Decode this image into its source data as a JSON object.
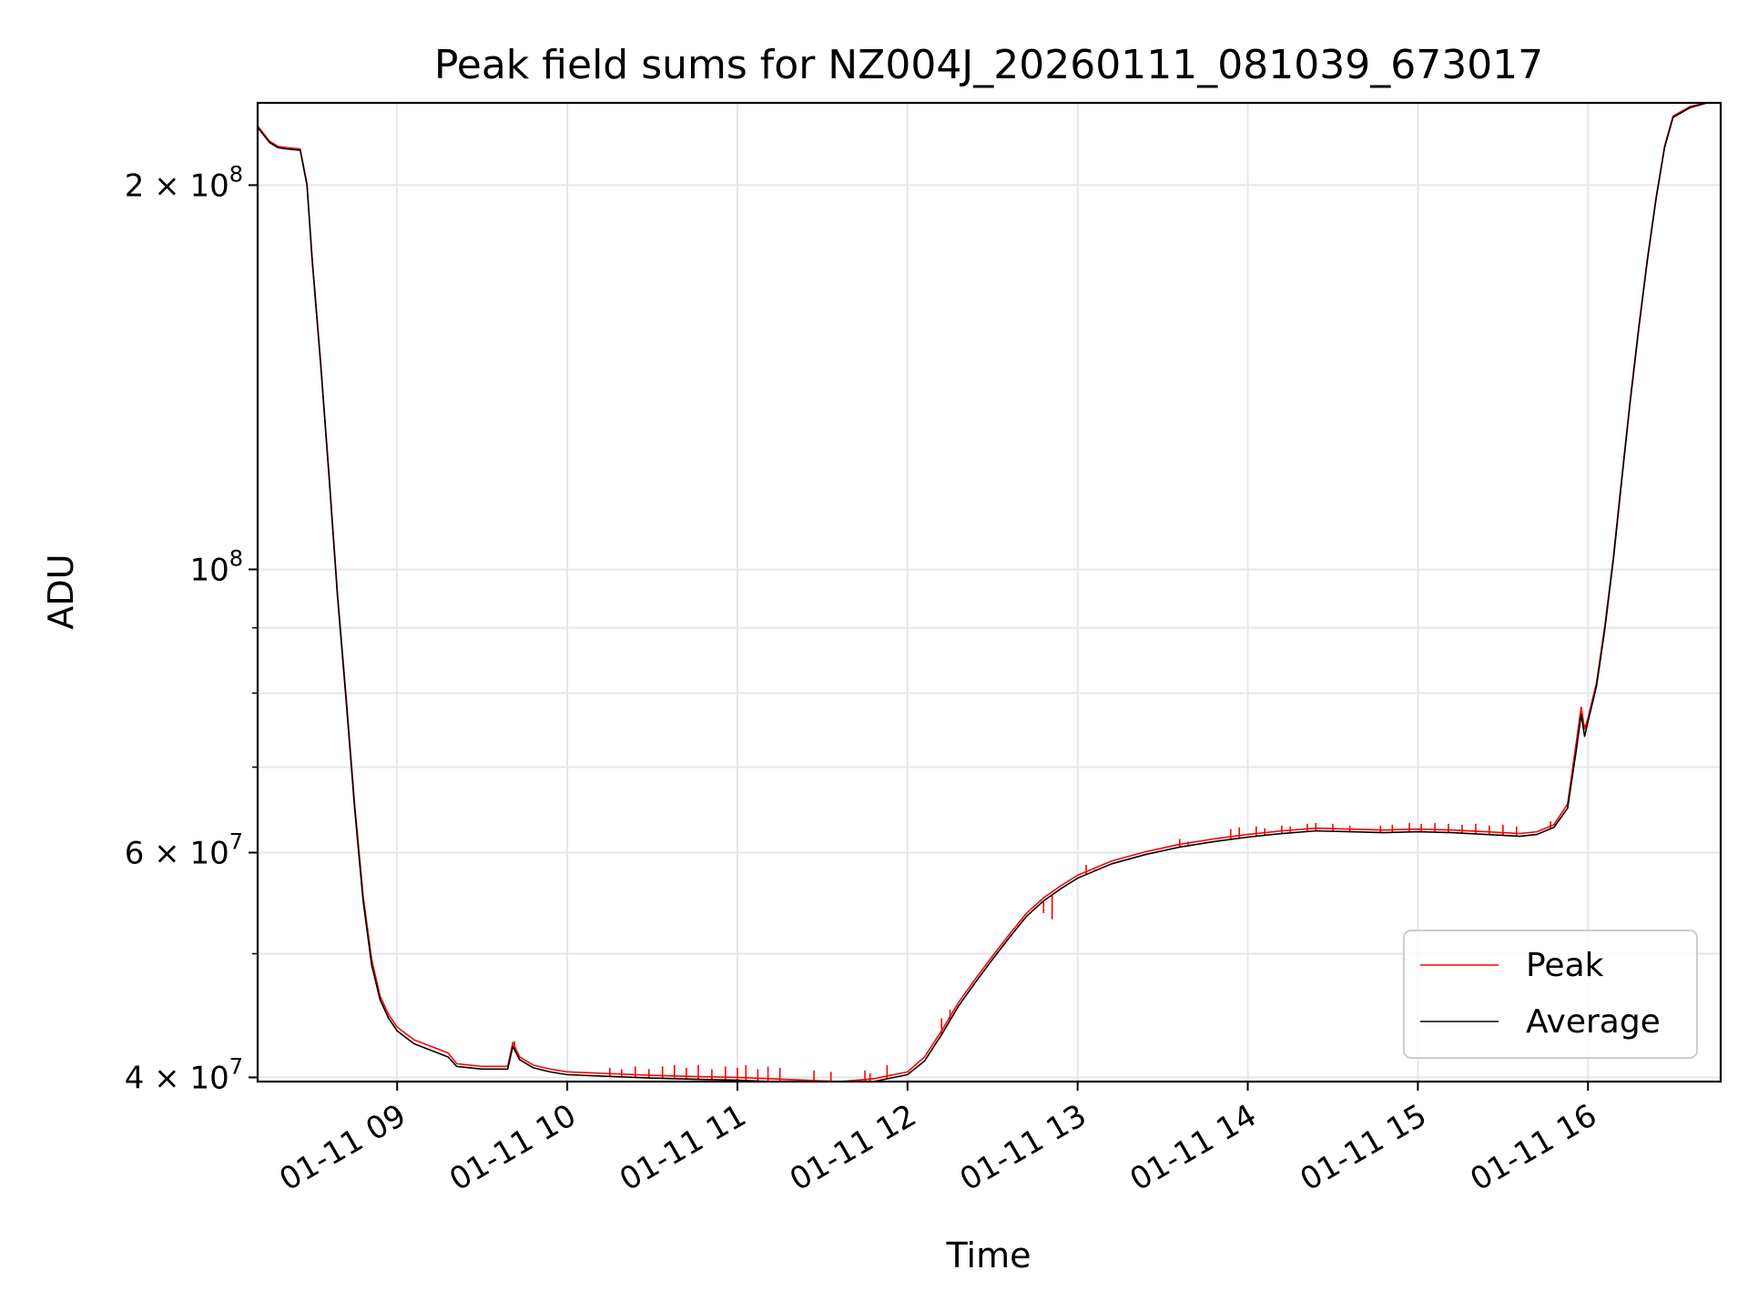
{
  "chart_data": {
    "type": "line",
    "title": "Peak field sums for NZ004J_20260111_081039_673017",
    "xlabel": "Time",
    "ylabel": "ADU",
    "yscale": "log",
    "xlim": [
      8.18,
      16.78
    ],
    "ylim": [
      39700000,
      232000000
    ],
    "grid": true,
    "legend_position": "lower right",
    "x_ticks": [
      {
        "value": 9,
        "label": "01-11 09"
      },
      {
        "value": 10,
        "label": "01-11 10"
      },
      {
        "value": 11,
        "label": "01-11 11"
      },
      {
        "value": 12,
        "label": "01-11 12"
      },
      {
        "value": 13,
        "label": "01-11 13"
      },
      {
        "value": 14,
        "label": "01-11 14"
      },
      {
        "value": 15,
        "label": "01-11 15"
      },
      {
        "value": 16,
        "label": "01-11 16"
      }
    ],
    "y_major_ticks": [
      {
        "value": 40000000,
        "mantissa": "4 × 10",
        "exp": "7"
      },
      {
        "value": 60000000,
        "mantissa": "6 × 10",
        "exp": "7"
      },
      {
        "value": 100000000,
        "mantissa": "10",
        "exp": "8"
      },
      {
        "value": 200000000,
        "mantissa": "2 × 10",
        "exp": "8"
      }
    ],
    "y_minor_ticks": [
      50000000,
      70000000,
      80000000,
      90000000
    ],
    "series": [
      {
        "name": "Average",
        "color": "#000000",
        "x": [
          8.18,
          8.25,
          8.3,
          8.35,
          8.43,
          8.47,
          8.5,
          8.55,
          8.6,
          8.65,
          8.7,
          8.75,
          8.8,
          8.85,
          8.9,
          8.95,
          9.0,
          9.1,
          9.2,
          9.3,
          9.35,
          9.5,
          9.65,
          9.68,
          9.72,
          9.8,
          9.9,
          10.0,
          10.2,
          10.5,
          10.8,
          11.0,
          11.2,
          11.4,
          11.6,
          11.8,
          12.0,
          12.1,
          12.2,
          12.3,
          12.4,
          12.5,
          12.6,
          12.7,
          12.8,
          12.9,
          13.0,
          13.2,
          13.4,
          13.6,
          13.8,
          14.0,
          14.2,
          14.4,
          14.6,
          14.8,
          15.0,
          15.2,
          15.4,
          15.6,
          15.7,
          15.8,
          15.88,
          15.93,
          15.96,
          15.98,
          16.0,
          16.05,
          16.1,
          16.15,
          16.2,
          16.25,
          16.3,
          16.35,
          16.4,
          16.45,
          16.5,
          16.6,
          16.7,
          16.78
        ],
        "y": [
          222000000,
          216000000,
          214000000,
          213500000,
          213000000,
          200000000,
          175000000,
          145000000,
          118000000,
          95000000,
          79000000,
          65000000,
          55000000,
          49000000,
          46000000,
          44500000,
          43500000,
          42500000,
          42000000,
          41500000,
          40800000,
          40600000,
          40600000,
          42300000,
          41300000,
          40700000,
          40400000,
          40200000,
          40100000,
          39950000,
          39850000,
          39800000,
          39700000,
          39600000,
          39500000,
          39700000,
          40200000,
          41200000,
          43200000,
          45500000,
          47500000,
          49500000,
          51500000,
          53500000,
          55000000,
          56200000,
          57300000,
          58800000,
          59800000,
          60600000,
          61200000,
          61700000,
          62100000,
          62400000,
          62300000,
          62200000,
          62300000,
          62200000,
          62000000,
          61800000,
          62000000,
          62800000,
          65000000,
          72000000,
          77000000,
          74000000,
          76000000,
          81000000,
          90000000,
          102000000,
          118000000,
          136000000,
          155000000,
          175000000,
          195000000,
          214000000,
          226000000,
          230000000,
          232000000,
          232000000
        ]
      },
      {
        "name": "Peak",
        "color": "#ff0000",
        "x": [
          8.18,
          8.25,
          8.3,
          8.35,
          8.43,
          8.47,
          8.5,
          8.55,
          8.6,
          8.65,
          8.7,
          8.75,
          8.8,
          8.85,
          8.9,
          8.95,
          9.0,
          9.1,
          9.2,
          9.3,
          9.35,
          9.5,
          9.65,
          9.68,
          9.72,
          9.8,
          9.9,
          10.0,
          10.2,
          10.5,
          10.8,
          11.0,
          11.2,
          11.4,
          11.6,
          11.8,
          12.0,
          12.1,
          12.2,
          12.3,
          12.4,
          12.5,
          12.6,
          12.7,
          12.8,
          12.9,
          13.0,
          13.2,
          13.4,
          13.6,
          13.8,
          14.0,
          14.2,
          14.4,
          14.6,
          14.8,
          15.0,
          15.2,
          15.4,
          15.6,
          15.7,
          15.8,
          15.88,
          15.93,
          15.96,
          15.98,
          16.0,
          16.05,
          16.1,
          16.15,
          16.2,
          16.25,
          16.3,
          16.35,
          16.4,
          16.45,
          16.5,
          16.6,
          16.7,
          16.78
        ],
        "y": [
          222500000,
          216500000,
          214500000,
          214000000,
          213500000,
          200500000,
          175500000,
          145500000,
          118500000,
          95500000,
          79500000,
          65500000,
          55500000,
          49500000,
          46300000,
          44800000,
          43800000,
          42800000,
          42300000,
          41800000,
          41000000,
          40800000,
          40800000,
          42600000,
          41500000,
          40900000,
          40600000,
          40400000,
          40300000,
          40150000,
          40050000,
          40000000,
          39900000,
          39800000,
          39700000,
          39900000,
          40400000,
          41500000,
          43500000,
          45800000,
          47800000,
          49800000,
          51800000,
          53800000,
          55300000,
          56500000,
          57600000,
          59100000,
          60100000,
          60900000,
          61500000,
          62000000,
          62400000,
          62700000,
          62600000,
          62500000,
          62600000,
          62500000,
          62300000,
          62100000,
          62300000,
          63100000,
          65500000,
          73000000,
          78000000,
          75000000,
          76500000,
          81500000,
          90500000,
          102500000,
          118500000,
          136500000,
          155500000,
          175500000,
          195500000,
          214500000,
          226500000,
          230500000,
          232000000,
          232000000
        ]
      }
    ],
    "peak_spikes": {
      "color": "#ff0000",
      "x": [
        9.69,
        10.25,
        10.32,
        10.4,
        10.48,
        10.56,
        10.63,
        10.7,
        10.77,
        10.85,
        10.93,
        11.0,
        11.05,
        11.12,
        11.18,
        11.25,
        11.45,
        11.55,
        11.75,
        11.78,
        11.88,
        12.2,
        12.25,
        12.8,
        12.85,
        13.05,
        13.1,
        13.6,
        13.65,
        13.9,
        13.95,
        14.05,
        14.1,
        14.2,
        14.25,
        14.35,
        14.4,
        14.5,
        14.6,
        14.78,
        14.85,
        14.95,
        15.02,
        15.1,
        15.18,
        15.26,
        15.34,
        15.42,
        15.5,
        15.58,
        15.78
      ],
      "y": [
        42700000,
        40700000,
        40600000,
        40800000,
        40600000,
        40800000,
        40900000,
        40700000,
        40900000,
        40600000,
        40800000,
        40700000,
        40900000,
        40600000,
        40800000,
        40700000,
        40500000,
        40400000,
        40500000,
        40300000,
        40900000,
        44500000,
        45200000,
        53800000,
        53200000,
        58700000,
        58200000,
        61500000,
        61200000,
        62600000,
        62800000,
        62900000,
        62700000,
        63000000,
        62900000,
        63200000,
        63300000,
        63200000,
        63000000,
        63000000,
        63100000,
        63300000,
        63200000,
        63300000,
        63200000,
        63100000,
        63200000,
        63000000,
        63100000,
        62900000,
        63500000
      ]
    }
  }
}
